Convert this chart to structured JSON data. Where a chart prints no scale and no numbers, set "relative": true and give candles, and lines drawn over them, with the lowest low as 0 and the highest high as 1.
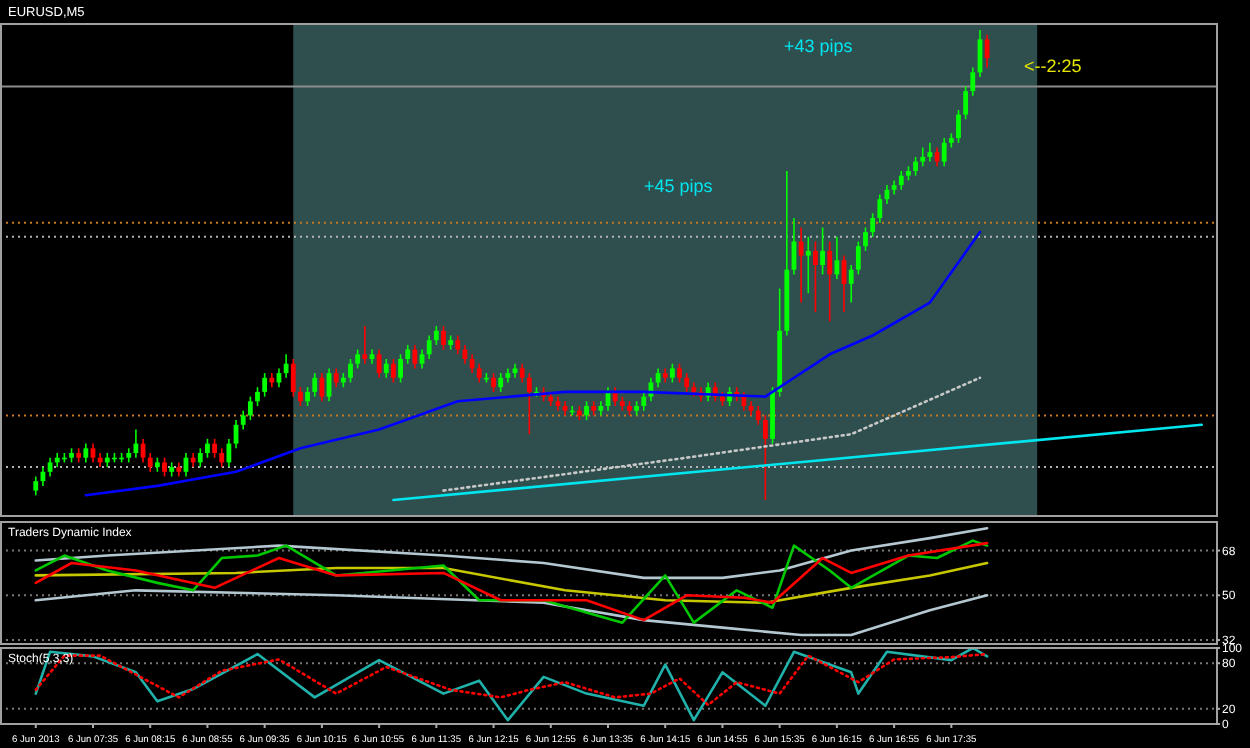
{
  "chart_data": [
    {
      "type": "candlestick",
      "title": "EURUSD,M5",
      "relative": true,
      "tick_labels": false,
      "xlim": [
        "2013-06-06T06:30",
        "2013-06-06T20:40"
      ],
      "annotations": [
        "+45 pips",
        "+43 pips",
        "<--2:25"
      ],
      "bands": [
        {
          "axis": "x",
          "from": "2013-06-06T09:55",
          "to": "2013-06-06T18:35",
          "color": "#2f4f4f"
        }
      ],
      "ref_lines": [
        {
          "axis": "y",
          "value": 0.88,
          "color": "#8c8c8c",
          "line_style": "solid"
        },
        {
          "axis": "y",
          "value": 0.59,
          "color": "#c8781e",
          "line_style": "dotted"
        },
        {
          "axis": "y",
          "value": 0.56,
          "color": "#b4b4b4",
          "line_style": "dotted"
        },
        {
          "axis": "y",
          "value": 0.18,
          "color": "#c8781e",
          "line_style": "dotted"
        },
        {
          "axis": "y",
          "value": 0.07,
          "color": "#b4b4b4",
          "line_style": "dotted"
        }
      ],
      "series": [
        {
          "x": [
            "2013-06-06T06:55",
            "2013-06-06T07:00",
            "2013-06-06T07:05",
            "2013-06-06T07:10",
            "2013-06-06T07:15",
            "2013-06-06T07:20",
            "2013-06-06T07:25",
            "2013-06-06T07:30",
            "2013-06-06T07:35",
            "2013-06-06T07:40",
            "2013-06-06T07:45",
            "2013-06-06T07:50",
            "2013-06-06T07:55",
            "2013-06-06T08:00",
            "2013-06-06T08:05",
            "2013-06-06T08:10",
            "2013-06-06T08:15",
            "2013-06-06T08:20",
            "2013-06-06T08:25",
            "2013-06-06T08:30",
            "2013-06-06T08:35",
            "2013-06-06T08:40",
            "2013-06-06T08:45",
            "2013-06-06T08:50",
            "2013-06-06T08:55",
            "2013-06-06T09:00",
            "2013-06-06T09:05",
            "2013-06-06T09:10",
            "2013-06-06T09:15",
            "2013-06-06T09:20",
            "2013-06-06T09:25",
            "2013-06-06T09:30",
            "2013-06-06T09:35",
            "2013-06-06T09:40",
            "2013-06-06T09:45",
            "2013-06-06T09:50",
            "2013-06-06T09:55",
            "2013-06-06T10:00",
            "2013-06-06T10:05",
            "2013-06-06T10:10",
            "2013-06-06T10:15",
            "2013-06-06T10:20",
            "2013-06-06T10:25",
            "2013-06-06T10:30",
            "2013-06-06T10:35",
            "2013-06-06T10:40",
            "2013-06-06T10:45",
            "2013-06-06T10:50",
            "2013-06-06T10:55",
            "2013-06-06T11:00",
            "2013-06-06T11:05",
            "2013-06-06T11:10",
            "2013-06-06T11:15",
            "2013-06-06T11:20",
            "2013-06-06T11:25",
            "2013-06-06T11:30",
            "2013-06-06T11:35",
            "2013-06-06T11:40",
            "2013-06-06T11:45",
            "2013-06-06T11:50",
            "2013-06-06T11:55",
            "2013-06-06T12:00",
            "2013-06-06T12:05",
            "2013-06-06T12:10",
            "2013-06-06T12:15",
            "2013-06-06T12:20",
            "2013-06-06T12:25",
            "2013-06-06T12:30",
            "2013-06-06T12:35",
            "2013-06-06T12:40",
            "2013-06-06T12:45",
            "2013-06-06T12:50",
            "2013-06-06T12:55",
            "2013-06-06T13:00",
            "2013-06-06T13:05",
            "2013-06-06T13:10",
            "2013-06-06T13:15",
            "2013-06-06T13:20",
            "2013-06-06T13:25",
            "2013-06-06T13:30",
            "2013-06-06T13:35",
            "2013-06-06T13:40",
            "2013-06-06T13:45",
            "2013-06-06T13:50",
            "2013-06-06T13:55",
            "2013-06-06T14:00",
            "2013-06-06T14:05",
            "2013-06-06T14:10",
            "2013-06-06T14:15",
            "2013-06-06T14:20",
            "2013-06-06T14:25",
            "2013-06-06T14:30",
            "2013-06-06T14:35",
            "2013-06-06T14:40",
            "2013-06-06T14:45",
            "2013-06-06T14:50",
            "2013-06-06T14:55",
            "2013-06-06T15:00",
            "2013-06-06T15:05",
            "2013-06-06T15:10",
            "2013-06-06T15:15",
            "2013-06-06T15:20",
            "2013-06-06T15:25",
            "2013-06-06T15:30",
            "2013-06-06T15:35",
            "2013-06-06T15:40",
            "2013-06-06T15:45",
            "2013-06-06T15:50",
            "2013-06-06T15:55",
            "2013-06-06T16:00",
            "2013-06-06T16:05",
            "2013-06-06T16:10",
            "2013-06-06T16:15",
            "2013-06-06T16:20",
            "2013-06-06T16:25",
            "2013-06-06T16:30",
            "2013-06-06T16:35",
            "2013-06-06T16:40",
            "2013-06-06T16:45",
            "2013-06-06T16:50",
            "2013-06-06T16:55",
            "2013-06-06T17:00",
            "2013-06-06T17:05",
            "2013-06-06T17:10",
            "2013-06-06T17:15",
            "2013-06-06T17:20",
            "2013-06-06T17:25",
            "2013-06-06T17:30",
            "2013-06-06T17:35",
            "2013-06-06T17:40",
            "2013-06-06T17:45",
            "2013-06-06T17:50",
            "2013-06-06T17:55",
            "2013-06-06T18:00"
          ],
          "ohlc": [
            [
              0.02,
              0.05,
              0.01,
              0.04
            ],
            [
              0.04,
              0.07,
              0.03,
              0.06
            ],
            [
              0.06,
              0.09,
              0.05,
              0.08
            ],
            [
              0.08,
              0.1,
              0.07,
              0.09
            ],
            [
              0.09,
              0.1,
              0.08,
              0.09
            ],
            [
              0.09,
              0.11,
              0.08,
              0.1
            ],
            [
              0.1,
              0.11,
              0.08,
              0.09
            ],
            [
              0.09,
              0.12,
              0.08,
              0.11
            ],
            [
              0.11,
              0.12,
              0.08,
              0.09
            ],
            [
              0.09,
              0.1,
              0.07,
              0.08
            ],
            [
              0.08,
              0.1,
              0.07,
              0.09
            ],
            [
              0.09,
              0.1,
              0.08,
              0.09
            ],
            [
              0.09,
              0.1,
              0.08,
              0.09
            ],
            [
              0.09,
              0.11,
              0.08,
              0.1
            ],
            [
              0.1,
              0.15,
              0.09,
              0.12
            ],
            [
              0.12,
              0.13,
              0.08,
              0.09
            ],
            [
              0.09,
              0.1,
              0.06,
              0.07
            ],
            [
              0.07,
              0.09,
              0.06,
              0.08
            ],
            [
              0.08,
              0.09,
              0.05,
              0.06
            ],
            [
              0.06,
              0.08,
              0.05,
              0.07
            ],
            [
              0.07,
              0.08,
              0.05,
              0.06
            ],
            [
              0.06,
              0.1,
              0.05,
              0.09
            ],
            [
              0.09,
              0.1,
              0.07,
              0.08
            ],
            [
              0.08,
              0.11,
              0.07,
              0.1
            ],
            [
              0.1,
              0.13,
              0.09,
              0.12
            ],
            [
              0.12,
              0.13,
              0.09,
              0.1
            ],
            [
              0.1,
              0.11,
              0.07,
              0.08
            ],
            [
              0.08,
              0.13,
              0.07,
              0.12
            ],
            [
              0.12,
              0.17,
              0.11,
              0.16
            ],
            [
              0.16,
              0.19,
              0.15,
              0.18
            ],
            [
              0.18,
              0.22,
              0.17,
              0.21
            ],
            [
              0.21,
              0.24,
              0.2,
              0.23
            ],
            [
              0.23,
              0.27,
              0.22,
              0.26
            ],
            [
              0.26,
              0.27,
              0.24,
              0.25
            ],
            [
              0.25,
              0.28,
              0.24,
              0.27
            ],
            [
              0.27,
              0.31,
              0.26,
              0.29
            ],
            [
              0.29,
              0.3,
              0.22,
              0.23
            ],
            [
              0.23,
              0.24,
              0.2,
              0.21
            ],
            [
              0.21,
              0.24,
              0.2,
              0.23
            ],
            [
              0.23,
              0.27,
              0.22,
              0.26
            ],
            [
              0.26,
              0.27,
              0.21,
              0.22
            ],
            [
              0.22,
              0.28,
              0.21,
              0.27
            ],
            [
              0.27,
              0.28,
              0.24,
              0.25
            ],
            [
              0.25,
              0.27,
              0.24,
              0.26
            ],
            [
              0.26,
              0.3,
              0.25,
              0.29
            ],
            [
              0.29,
              0.32,
              0.28,
              0.31
            ],
            [
              0.31,
              0.37,
              0.29,
              0.3
            ],
            [
              0.3,
              0.32,
              0.29,
              0.31
            ],
            [
              0.31,
              0.32,
              0.26,
              0.27
            ],
            [
              0.27,
              0.3,
              0.26,
              0.29
            ],
            [
              0.29,
              0.3,
              0.25,
              0.26
            ],
            [
              0.26,
              0.31,
              0.25,
              0.3
            ],
            [
              0.3,
              0.33,
              0.29,
              0.32
            ],
            [
              0.32,
              0.33,
              0.28,
              0.29
            ],
            [
              0.29,
              0.32,
              0.28,
              0.31
            ],
            [
              0.31,
              0.35,
              0.3,
              0.34
            ],
            [
              0.34,
              0.37,
              0.33,
              0.36
            ],
            [
              0.36,
              0.37,
              0.32,
              0.33
            ],
            [
              0.33,
              0.35,
              0.32,
              0.34
            ],
            [
              0.34,
              0.35,
              0.31,
              0.32
            ],
            [
              0.32,
              0.33,
              0.29,
              0.3
            ],
            [
              0.3,
              0.31,
              0.27,
              0.28
            ],
            [
              0.28,
              0.29,
              0.25,
              0.26
            ],
            [
              0.26,
              0.27,
              0.25,
              0.26
            ],
            [
              0.26,
              0.27,
              0.23,
              0.24
            ],
            [
              0.24,
              0.27,
              0.23,
              0.26
            ],
            [
              0.26,
              0.28,
              0.25,
              0.27
            ],
            [
              0.27,
              0.29,
              0.26,
              0.28
            ],
            [
              0.28,
              0.29,
              0.25,
              0.26
            ],
            [
              0.26,
              0.27,
              0.14,
              0.23
            ],
            [
              0.23,
              0.24,
              0.22,
              0.23
            ],
            [
              0.23,
              0.24,
              0.21,
              0.22
            ],
            [
              0.22,
              0.23,
              0.2,
              0.21
            ],
            [
              0.21,
              0.22,
              0.19,
              0.2
            ],
            [
              0.2,
              0.21,
              0.18,
              0.19
            ],
            [
              0.19,
              0.2,
              0.18,
              0.19
            ],
            [
              0.19,
              0.2,
              0.17,
              0.18
            ],
            [
              0.18,
              0.21,
              0.17,
              0.2
            ],
            [
              0.2,
              0.21,
              0.18,
              0.19
            ],
            [
              0.19,
              0.21,
              0.18,
              0.2
            ],
            [
              0.2,
              0.24,
              0.19,
              0.23
            ],
            [
              0.23,
              0.24,
              0.2,
              0.21
            ],
            [
              0.21,
              0.22,
              0.19,
              0.2
            ],
            [
              0.2,
              0.21,
              0.18,
              0.19
            ],
            [
              0.19,
              0.21,
              0.18,
              0.2
            ],
            [
              0.2,
              0.23,
              0.19,
              0.22
            ],
            [
              0.22,
              0.26,
              0.21,
              0.25
            ],
            [
              0.25,
              0.28,
              0.24,
              0.27
            ],
            [
              0.27,
              0.28,
              0.25,
              0.26
            ],
            [
              0.26,
              0.29,
              0.25,
              0.28
            ],
            [
              0.28,
              0.29,
              0.25,
              0.26
            ],
            [
              0.26,
              0.27,
              0.23,
              0.24
            ],
            [
              0.24,
              0.25,
              0.22,
              0.23
            ],
            [
              0.23,
              0.24,
              0.21,
              0.22
            ],
            [
              0.22,
              0.25,
              0.21,
              0.24
            ],
            [
              0.24,
              0.25,
              0.21,
              0.22
            ],
            [
              0.22,
              0.23,
              0.2,
              0.21
            ],
            [
              0.21,
              0.24,
              0.2,
              0.23
            ],
            [
              0.23,
              0.24,
              0.21,
              0.22
            ],
            [
              0.22,
              0.23,
              0.19,
              0.2
            ],
            [
              0.2,
              0.21,
              0.18,
              0.19
            ],
            [
              0.19,
              0.2,
              0.16,
              0.17
            ],
            [
              0.17,
              0.18,
              0,
              0.13
            ],
            [
              0.13,
              0.24,
              0.12,
              0.23
            ],
            [
              0.23,
              0.45,
              0.22,
              0.36
            ],
            [
              0.36,
              0.7,
              0.35,
              0.49
            ],
            [
              0.49,
              0.6,
              0.48,
              0.55
            ],
            [
              0.55,
              0.58,
              0.42,
              0.52
            ],
            [
              0.52,
              0.56,
              0.44,
              0.53
            ],
            [
              0.53,
              0.55,
              0.4,
              0.5
            ],
            [
              0.5,
              0.58,
              0.48,
              0.53
            ],
            [
              0.53,
              0.55,
              0.38,
              0.48
            ],
            [
              0.48,
              0.56,
              0.47,
              0.51
            ],
            [
              0.51,
              0.52,
              0.4,
              0.46
            ],
            [
              0.46,
              0.5,
              0.42,
              0.49
            ],
            [
              0.49,
              0.55,
              0.48,
              0.54
            ],
            [
              0.54,
              0.58,
              0.53,
              0.57
            ],
            [
              0.57,
              0.61,
              0.56,
              0.6
            ],
            [
              0.6,
              0.65,
              0.59,
              0.64
            ],
            [
              0.64,
              0.67,
              0.63,
              0.66
            ],
            [
              0.66,
              0.68,
              0.65,
              0.67
            ],
            [
              0.67,
              0.7,
              0.66,
              0.69
            ],
            [
              0.69,
              0.71,
              0.68,
              0.7
            ],
            [
              0.7,
              0.73,
              0.69,
              0.72
            ],
            [
              0.72,
              0.75,
              0.71,
              0.73
            ],
            [
              0.73,
              0.76,
              0.72,
              0.74
            ],
            [
              0.74,
              0.75,
              0.71,
              0.72
            ],
            [
              0.72,
              0.77,
              0.71,
              0.76
            ],
            [
              0.76,
              0.78,
              0.75,
              0.77
            ],
            [
              0.77,
              0.83,
              0.76,
              0.82
            ],
            [
              0.82,
              0.88,
              0.81,
              0.87
            ],
            [
              0.87,
              0.92,
              0.86,
              0.91
            ],
            [
              0.91,
              1,
              0.9,
              0.98
            ],
            [
              0.98,
              0.99,
              0.92,
              0.94
            ]
          ]
        },
        {
          "type": "line",
          "color": "#0000ff",
          "x": [
            "2013-06-06T07:30",
            "2013-06-06T08:20",
            "2013-06-06T09:15",
            "2013-06-06T10:00",
            "2013-06-06T10:55",
            "2013-06-06T11:50",
            "2013-06-06T13:05",
            "2013-06-06T14:00",
            "2013-06-06T15:25",
            "2013-06-06T15:40",
            "2013-06-06T16:10",
            "2013-06-06T16:40",
            "2013-06-06T17:20",
            "2013-06-06T17:55"
          ],
          "values": [
            0.01,
            0.03,
            0.06,
            0.11,
            0.15,
            0.21,
            0.23,
            0.23,
            0.22,
            0.25,
            0.31,
            0.35,
            0.42,
            0.57
          ]
        },
        {
          "type": "line",
          "color": "#c8c8c8",
          "line_style": "dotted",
          "x": [
            "2013-06-06T11:40",
            "2013-06-06T14:30",
            "2013-06-06T16:25",
            "2013-06-06T17:55"
          ],
          "values": [
            0.02,
            0.09,
            0.14,
            0.26
          ]
        },
        {
          "type": "line",
          "color": "#00e5ee",
          "x": [
            "2013-06-06T11:05",
            "2013-06-06T20:30"
          ],
          "values": [
            0,
            0.16
          ]
        }
      ]
    },
    {
      "type": "line",
      "title": "Traders Dynamic Index",
      "tick_labels": "y",
      "grid": "y",
      "xlim": [
        "2013-06-06T06:30",
        "2013-06-06T20:40"
      ],
      "ylim": [
        30.4,
        79.5
      ],
      "yticks": [
        68,
        50,
        32
      ],
      "series": [
        {
          "color": "#b4c8d2",
          "x": [
            "2013-06-06T06:55",
            "2013-06-06T07:45",
            "2013-06-06T09:45",
            "2013-06-06T11:40",
            "2013-06-06T12:50",
            "2013-06-06T14:00",
            "2013-06-06T14:55",
            "2013-06-06T15:35",
            "2013-06-06T16:25",
            "2013-06-06T17:20",
            "2013-06-06T18:00"
          ],
          "values": [
            64,
            66,
            70,
            66,
            63,
            57,
            57,
            60,
            68,
            73,
            77
          ]
        },
        {
          "color": "#b4c8d2",
          "x": [
            "2013-06-06T06:55",
            "2013-06-06T08:05",
            "2013-06-06T10:25",
            "2013-06-06T12:50",
            "2013-06-06T14:00",
            "2013-06-06T14:55",
            "2013-06-06T15:50",
            "2013-06-06T16:25",
            "2013-06-06T17:20",
            "2013-06-06T18:00"
          ],
          "values": [
            48,
            52,
            50,
            47,
            40,
            37,
            34,
            34,
            44,
            50
          ]
        },
        {
          "color": "#c8c800",
          "x": [
            "2013-06-06T06:55",
            "2013-06-06T09:15",
            "2013-06-06T10:25",
            "2013-06-06T11:40",
            "2013-06-06T13:05",
            "2013-06-06T14:15",
            "2013-06-06T15:25",
            "2013-06-06T16:25",
            "2013-06-06T17:20",
            "2013-06-06T18:00"
          ],
          "values": [
            58,
            59,
            61,
            61,
            52,
            48,
            47,
            53,
            58,
            63
          ]
        },
        {
          "color": "#00c800",
          "x": [
            "2013-06-06T06:55",
            "2013-06-06T07:15",
            "2013-06-06T07:45",
            "2013-06-06T08:20",
            "2013-06-06T08:45",
            "2013-06-06T09:05",
            "2013-06-06T09:30",
            "2013-06-06T09:50",
            "2013-06-06T10:25",
            "2013-06-06T11:40",
            "2013-06-06T12:05",
            "2013-06-06T12:50",
            "2013-06-06T13:45",
            "2013-06-06T14:15",
            "2013-06-06T14:35",
            "2013-06-06T15:05",
            "2013-06-06T15:30",
            "2013-06-06T15:45",
            "2013-06-06T16:10",
            "2013-06-06T16:25",
            "2013-06-06T17:05",
            "2013-06-06T17:25",
            "2013-06-06T17:50",
            "2013-06-06T18:00"
          ],
          "values": [
            60,
            66,
            60,
            55,
            52,
            65,
            66,
            70,
            58,
            62,
            48,
            48,
            39,
            58,
            39,
            52,
            45,
            70,
            60,
            53,
            66,
            65,
            72,
            70
          ]
        },
        {
          "color": "#ff0000",
          "x": [
            "2013-06-06T06:55",
            "2013-06-06T07:20",
            "2013-06-06T08:05",
            "2013-06-06T09:00",
            "2013-06-06T09:45",
            "2013-06-06T10:25",
            "2013-06-06T11:40",
            "2013-06-06T12:20",
            "2013-06-06T13:20",
            "2013-06-06T14:00",
            "2013-06-06T14:30",
            "2013-06-06T15:10",
            "2013-06-06T15:30",
            "2013-06-06T16:05",
            "2013-06-06T16:25",
            "2013-06-06T17:05",
            "2013-06-06T18:00"
          ],
          "values": [
            55,
            63,
            60,
            53,
            65,
            58,
            59,
            48,
            48,
            40,
            50,
            49,
            47,
            65,
            59,
            66,
            71
          ]
        }
      ]
    },
    {
      "type": "line",
      "title": "Stoch(5,3,3)",
      "grid": "y",
      "xlim": [
        "2013-06-06T06:30",
        "2013-06-06T20:40"
      ],
      "ylim": [
        0,
        100
      ],
      "yticks": [
        100,
        80,
        20,
        0
      ],
      "xticks": [
        {
          "value": "2013-06-06T06:55",
          "label": "6 Jun 2013"
        },
        {
          "value": "2013-06-06T07:35",
          "label": "6 Jun 07:35"
        },
        {
          "value": "2013-06-06T08:15",
          "label": "6 Jun 08:15"
        },
        {
          "value": "2013-06-06T08:55",
          "label": "6 Jun 08:55"
        },
        {
          "value": "2013-06-06T09:35",
          "label": "6 Jun 09:35"
        },
        {
          "value": "2013-06-06T10:15",
          "label": "6 Jun 10:15"
        },
        {
          "value": "2013-06-06T10:55",
          "label": "6 Jun 10:55"
        },
        {
          "value": "2013-06-06T11:35",
          "label": "6 Jun 11:35"
        },
        {
          "value": "2013-06-06T12:15",
          "label": "6 Jun 12:15"
        },
        {
          "value": "2013-06-06T12:55",
          "label": "6 Jun 12:55"
        },
        {
          "value": "2013-06-06T13:35",
          "label": "6 Jun 13:35"
        },
        {
          "value": "2013-06-06T14:15",
          "label": "6 Jun 14:15"
        },
        {
          "value": "2013-06-06T14:55",
          "label": "6 Jun 14:55"
        },
        {
          "value": "2013-06-06T15:35",
          "label": "6 Jun 15:35"
        },
        {
          "value": "2013-06-06T16:15",
          "label": "6 Jun 16:15"
        },
        {
          "value": "2013-06-06T16:55",
          "label": "6 Jun 16:55"
        },
        {
          "value": "2013-06-06T17:35",
          "label": "6 Jun 17:35"
        }
      ],
      "series": [
        {
          "color": "#20b2aa",
          "x": [
            "2013-06-06T06:55",
            "2013-06-06T07:05",
            "2013-06-06T07:35",
            "2013-06-06T08:05",
            "2013-06-06T08:20",
            "2013-06-06T08:45",
            "2013-06-06T09:30",
            "2013-06-06T10:10",
            "2013-06-06T10:55",
            "2013-06-06T11:40",
            "2013-06-06T12:05",
            "2013-06-06T12:25",
            "2013-06-06T12:50",
            "2013-06-06T13:20",
            "2013-06-06T14:00",
            "2013-06-06T14:15",
            "2013-06-06T14:35",
            "2013-06-06T14:55",
            "2013-06-06T15:25",
            "2013-06-06T15:45",
            "2013-06-06T16:25",
            "2013-06-06T16:30",
            "2013-06-06T16:50",
            "2013-06-06T17:35",
            "2013-06-06T17:50",
            "2013-06-06T18:00"
          ],
          "values": [
            40,
            95,
            89,
            68,
            30,
            46,
            92,
            35,
            84,
            40,
            57,
            5,
            62,
            40,
            24,
            78,
            5,
            68,
            24,
            95,
            68,
            40,
            95,
            84,
            100,
            89
          ]
        },
        {
          "color": "#ff0000",
          "line_style": "dotted",
          "x": [
            "2013-06-06T06:55",
            "2013-06-06T07:15",
            "2013-06-06T07:40",
            "2013-06-06T08:10",
            "2013-06-06T08:35",
            "2013-06-06T09:05",
            "2013-06-06T09:45",
            "2013-06-06T10:25",
            "2013-06-06T11:00",
            "2013-06-06T11:45",
            "2013-06-06T12:20",
            "2013-06-06T12:40",
            "2013-06-06T13:05",
            "2013-06-06T13:40",
            "2013-06-06T14:05",
            "2013-06-06T14:25",
            "2013-06-06T14:45",
            "2013-06-06T15:05",
            "2013-06-06T15:35",
            "2013-06-06T15:55",
            "2013-06-06T16:30",
            "2013-06-06T16:55",
            "2013-06-06T17:35",
            "2013-06-06T18:00"
          ],
          "values": [
            45,
            90,
            90,
            60,
            35,
            70,
            85,
            40,
            75,
            45,
            35,
            45,
            55,
            35,
            40,
            60,
            25,
            55,
            40,
            90,
            55,
            85,
            88,
            92
          ]
        }
      ]
    }
  ]
}
